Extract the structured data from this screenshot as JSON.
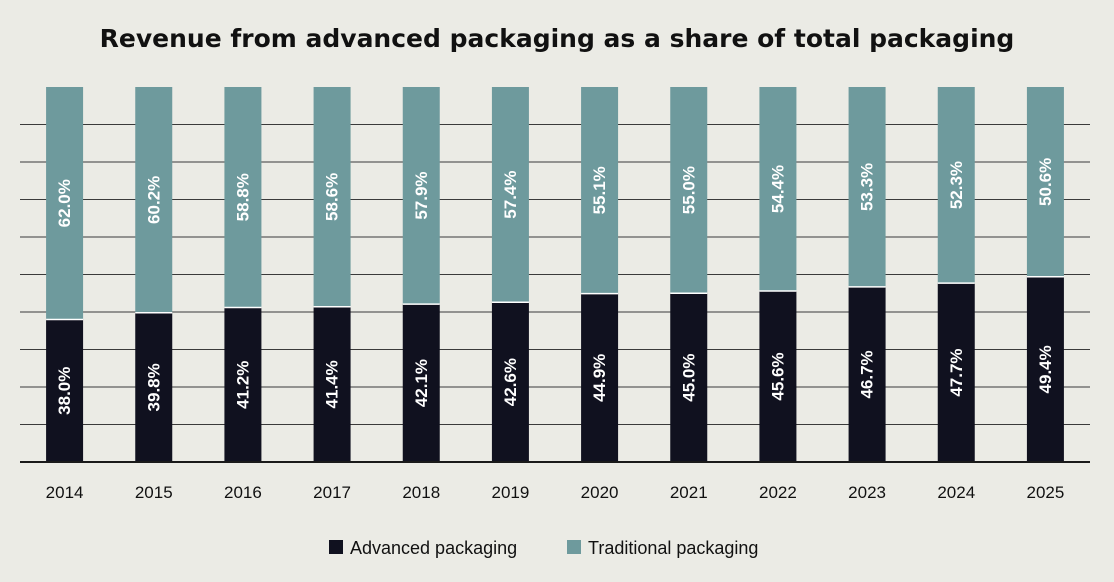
{
  "chart_data": {
    "type": "bar",
    "stacked": true,
    "title": "Revenue from advanced packaging as a share of total packaging",
    "xlabel": "",
    "ylabel": "",
    "ylim": [
      0,
      100
    ],
    "grid": true,
    "legend_position": "bottom-center",
    "categories": [
      "2014",
      "2015",
      "2016",
      "2017",
      "2018",
      "2019",
      "2020",
      "2021",
      "2022",
      "2023",
      "2024",
      "2025"
    ],
    "series": [
      {
        "name": "Advanced packaging",
        "color": "#10111f",
        "values": [
          38.0,
          39.8,
          41.2,
          41.4,
          42.1,
          42.6,
          44.9,
          45.0,
          45.6,
          46.7,
          47.7,
          49.4
        ],
        "labels": [
          "38.0%",
          "39.8%",
          "41.2%",
          "41.4%",
          "42.1%",
          "42.6%",
          "44.9%",
          "45.0%",
          "45.6%",
          "46.7%",
          "47.7%",
          "49.4%"
        ]
      },
      {
        "name": "Traditional packaging",
        "color": "#6e9a9d",
        "values": [
          62.0,
          60.2,
          58.8,
          58.6,
          57.9,
          57.4,
          55.1,
          55.0,
          54.4,
          53.3,
          52.3,
          50.6
        ],
        "labels": [
          "62.0%",
          "60.2%",
          "58.8%",
          "58.6%",
          "57.9%",
          "57.4%",
          "55.1%",
          "55.0%",
          "54.4%",
          "53.3%",
          "52.3%",
          "50.6%"
        ]
      }
    ]
  }
}
